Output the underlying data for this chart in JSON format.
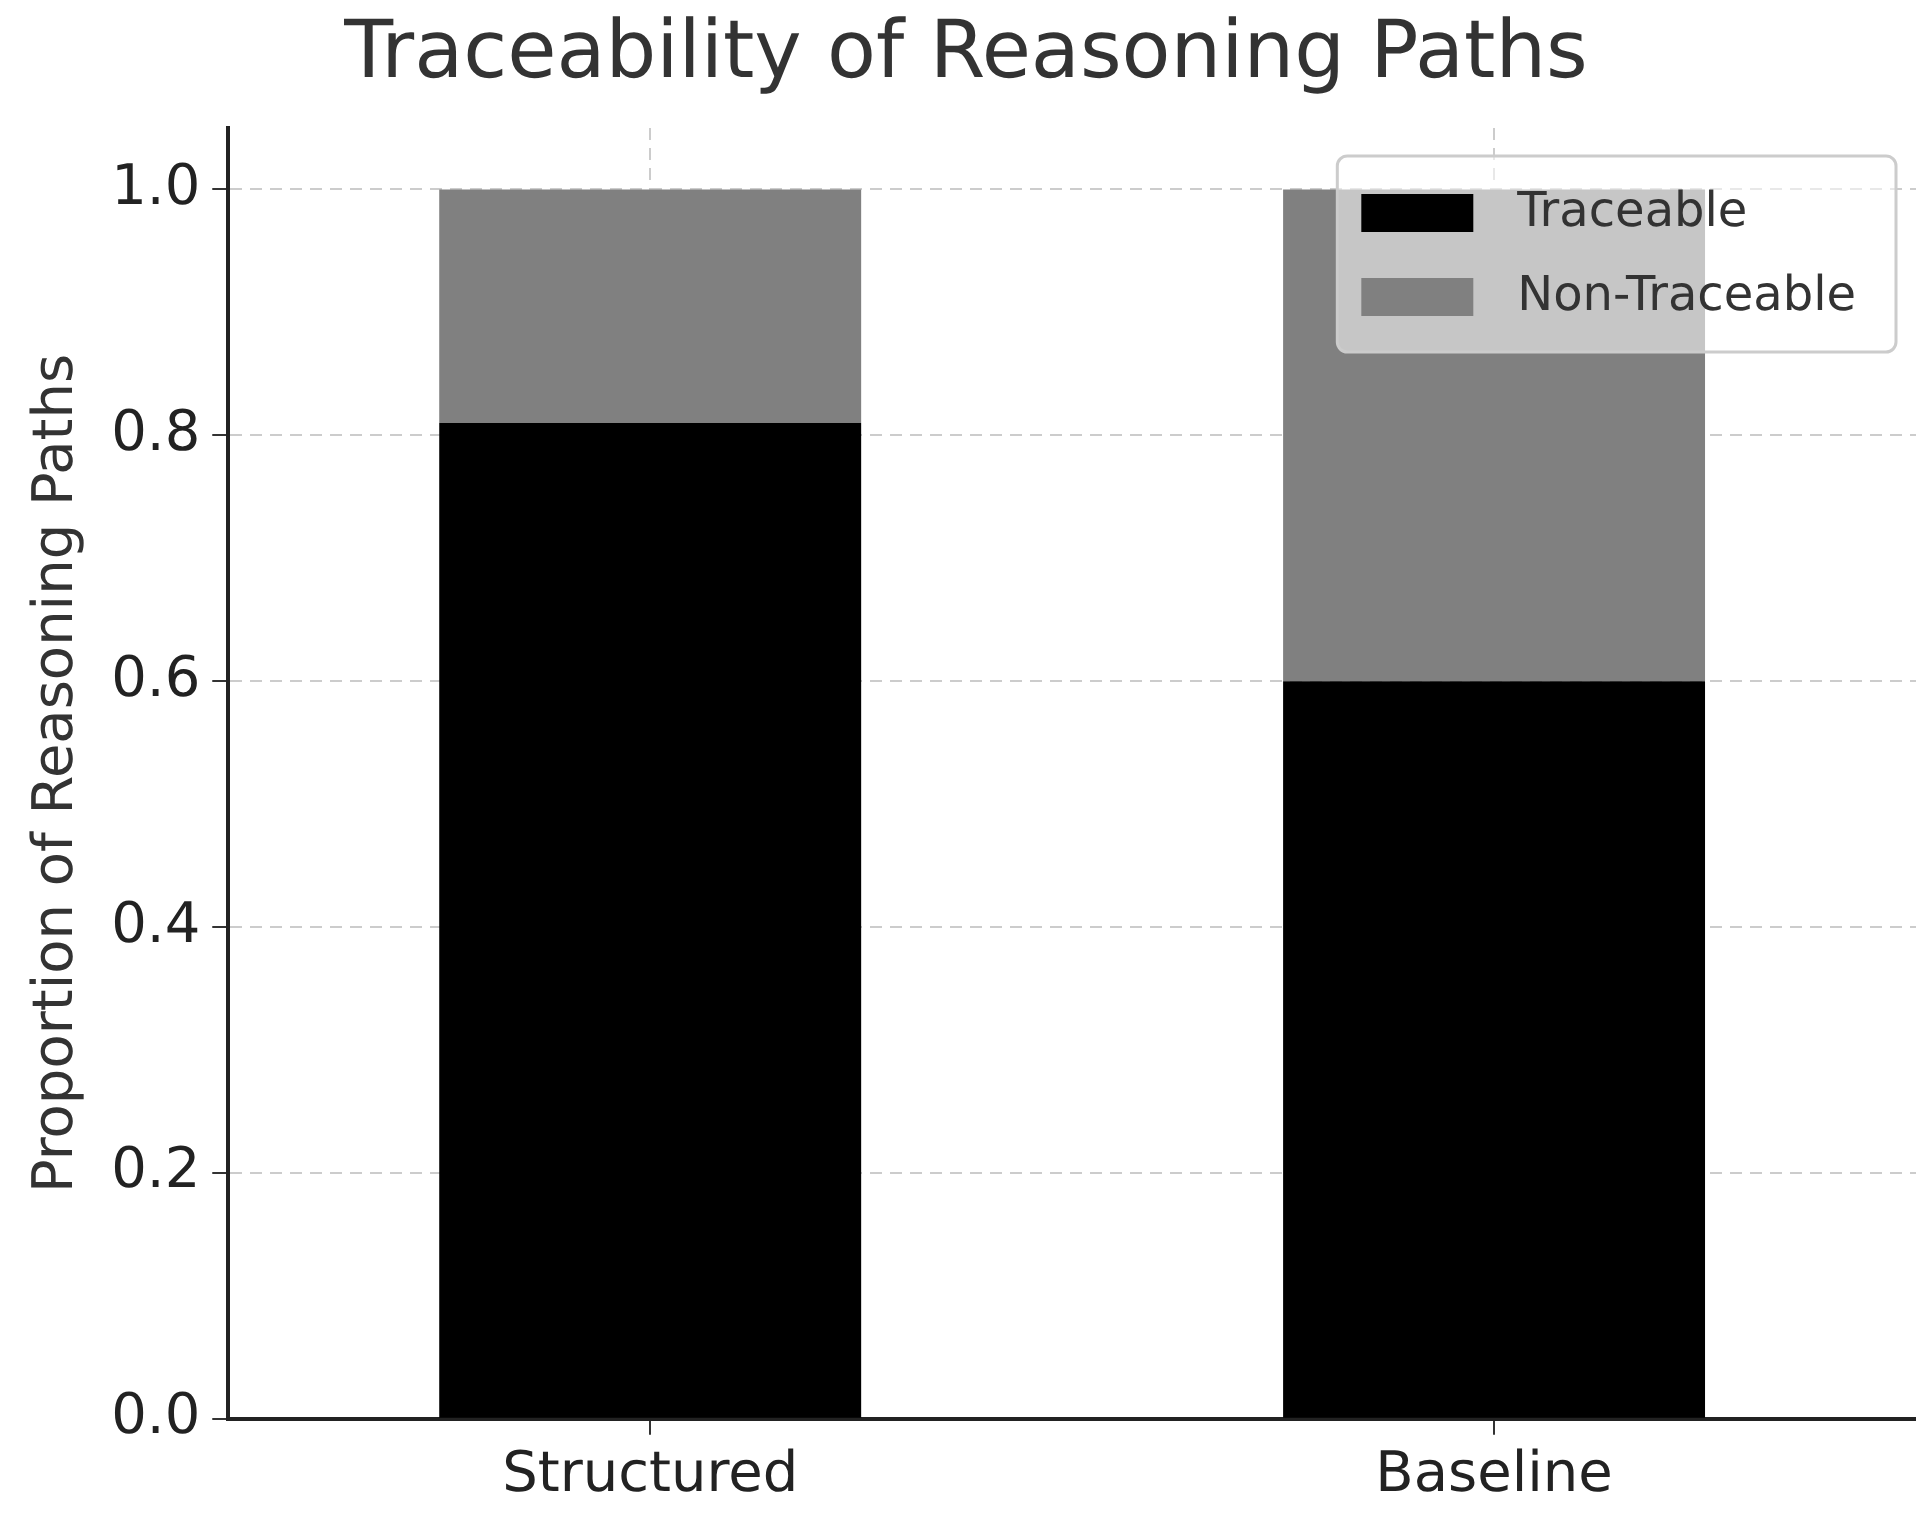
{
  "chart_data": {
    "type": "bar",
    "title": "Traceability of Reasoning Paths",
    "ylabel": "Proportion of Reasoning Paths",
    "categories": [
      "Structured",
      "Baseline"
    ],
    "series": [
      {
        "name": "Traceable",
        "color": "#000000",
        "values": [
          0.81,
          0.6
        ]
      },
      {
        "name": "Non-Traceable",
        "color": "#808080",
        "values": [
          0.19,
          0.4
        ]
      }
    ],
    "stacked": true,
    "ylim": [
      0,
      1.05
    ],
    "yticks": [
      {
        "value": 0,
        "label": "0.0"
      },
      0.2,
      0.4,
      0.6,
      0.8,
      {
        "value": 1,
        "label": "1.0"
      }
    ],
    "grid": true,
    "legend": "top right"
  }
}
